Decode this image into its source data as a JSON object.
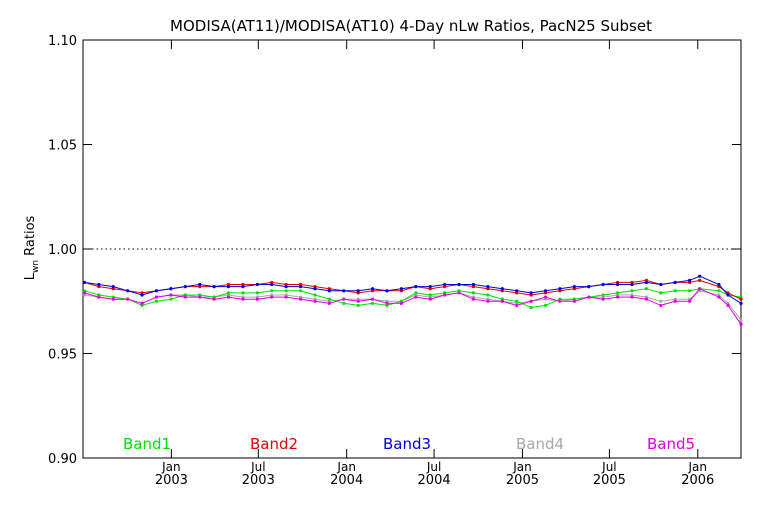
{
  "chart_data": {
    "type": "line",
    "title": "MODISA(AT11)/MODISA(AT10) 4-Day nLw Ratios, PacN25 Subset",
    "xlabel": "",
    "ylabel_main": "L",
    "ylabel_sub": "wn",
    "ylabel_rest": " Ratios",
    "ylim": [
      0.9,
      1.1
    ],
    "yticks": [
      "1.10",
      "1.05",
      "1.00",
      "0.95",
      "0.90"
    ],
    "ytick_values": [
      1.1,
      1.05,
      1.0,
      0.95,
      0.9
    ],
    "xlim": [
      "2002-07-01",
      "2006-04-01"
    ],
    "xticks": [
      {
        "date": "2003-01-01",
        "month": "Jan",
        "year": "2003"
      },
      {
        "date": "2003-07-01",
        "month": "Jul",
        "year": "2003"
      },
      {
        "date": "2004-01-01",
        "month": "Jan",
        "year": "2004"
      },
      {
        "date": "2004-07-01",
        "month": "Jul",
        "year": "2004"
      },
      {
        "date": "2005-01-01",
        "month": "Jan",
        "year": "2005"
      },
      {
        "date": "2005-07-01",
        "month": "Jul",
        "year": "2005"
      },
      {
        "date": "2006-01-01",
        "month": "Jan",
        "year": "2006"
      }
    ],
    "reference_line": 1.0,
    "x": [
      "2002-07-04",
      "2002-08-03",
      "2002-09-02",
      "2002-10-02",
      "2002-11-01",
      "2002-12-01",
      "2002-12-31",
      "2003-01-30",
      "2003-03-01",
      "2003-03-31",
      "2003-04-30",
      "2003-05-30",
      "2003-06-29",
      "2003-07-29",
      "2003-08-28",
      "2003-09-27",
      "2003-10-27",
      "2003-11-26",
      "2003-12-26",
      "2004-01-25",
      "2004-02-24",
      "2004-03-25",
      "2004-04-24",
      "2004-05-24",
      "2004-06-23",
      "2004-07-23",
      "2004-08-22",
      "2004-09-21",
      "2004-10-21",
      "2004-11-20",
      "2004-12-20",
      "2005-01-19",
      "2005-02-18",
      "2005-03-20",
      "2005-04-19",
      "2005-05-19",
      "2005-06-18",
      "2005-07-18",
      "2005-08-17",
      "2005-09-16",
      "2005-10-16",
      "2005-11-15",
      "2005-12-15",
      "2006-01-05",
      "2006-02-14",
      "2006-03-05",
      "2006-04-01"
    ],
    "series": [
      {
        "name": "Band1",
        "color": "#00e000",
        "values": [
          0.98,
          0.978,
          0.977,
          0.976,
          0.973,
          0.975,
          0.976,
          0.978,
          0.978,
          0.977,
          0.979,
          0.979,
          0.979,
          0.98,
          0.98,
          0.98,
          0.978,
          0.976,
          0.974,
          0.973,
          0.974,
          0.973,
          0.975,
          0.979,
          0.978,
          0.979,
          0.98,
          0.979,
          0.978,
          0.976,
          0.975,
          0.972,
          0.973,
          0.976,
          0.976,
          0.977,
          0.978,
          0.979,
          0.98,
          0.981,
          0.979,
          0.98,
          0.98,
          0.981,
          0.98,
          0.978,
          0.977
        ]
      },
      {
        "name": "Band2",
        "color": "#e00000",
        "values": [
          0.984,
          0.982,
          0.981,
          0.98,
          0.979,
          0.98,
          0.981,
          0.982,
          0.982,
          0.982,
          0.983,
          0.983,
          0.983,
          0.984,
          0.983,
          0.983,
          0.982,
          0.981,
          0.98,
          0.979,
          0.98,
          0.98,
          0.98,
          0.982,
          0.981,
          0.982,
          0.983,
          0.982,
          0.981,
          0.98,
          0.979,
          0.978,
          0.979,
          0.98,
          0.981,
          0.982,
          0.983,
          0.984,
          0.984,
          0.985,
          0.983,
          0.984,
          0.984,
          0.985,
          0.982,
          0.979,
          0.976
        ]
      },
      {
        "name": "Band3",
        "color": "#0000e0",
        "values": [
          0.984,
          0.983,
          0.982,
          0.98,
          0.978,
          0.98,
          0.981,
          0.982,
          0.983,
          0.982,
          0.982,
          0.982,
          0.983,
          0.983,
          0.982,
          0.982,
          0.981,
          0.98,
          0.98,
          0.98,
          0.981,
          0.98,
          0.981,
          0.982,
          0.982,
          0.983,
          0.983,
          0.983,
          0.982,
          0.981,
          0.98,
          0.979,
          0.98,
          0.981,
          0.982,
          0.982,
          0.983,
          0.983,
          0.983,
          0.984,
          0.983,
          0.984,
          0.985,
          0.987,
          0.983,
          0.978,
          0.974
        ]
      },
      {
        "name": "Band4",
        "color": "#a8a8a8",
        "values": [
          0.978,
          0.977,
          0.976,
          0.976,
          0.974,
          0.977,
          0.978,
          0.978,
          0.977,
          0.977,
          0.978,
          0.977,
          0.977,
          0.978,
          0.978,
          0.977,
          0.976,
          0.975,
          0.976,
          0.976,
          0.976,
          0.975,
          0.975,
          0.978,
          0.977,
          0.978,
          0.979,
          0.977,
          0.976,
          0.975,
          0.974,
          0.975,
          0.976,
          0.975,
          0.976,
          0.977,
          0.977,
          0.978,
          0.978,
          0.977,
          0.975,
          0.976,
          0.976,
          0.98,
          0.978,
          0.974,
          0.966
        ]
      },
      {
        "name": "Band5",
        "color": "#e000e0",
        "values": [
          0.979,
          0.977,
          0.976,
          0.976,
          0.974,
          0.977,
          0.978,
          0.977,
          0.977,
          0.976,
          0.977,
          0.976,
          0.976,
          0.977,
          0.977,
          0.976,
          0.975,
          0.974,
          0.976,
          0.975,
          0.976,
          0.974,
          0.974,
          0.977,
          0.976,
          0.978,
          0.979,
          0.976,
          0.975,
          0.975,
          0.973,
          0.975,
          0.977,
          0.975,
          0.975,
          0.977,
          0.976,
          0.977,
          0.977,
          0.976,
          0.973,
          0.975,
          0.975,
          0.981,
          0.977,
          0.973,
          0.964
        ]
      }
    ]
  }
}
